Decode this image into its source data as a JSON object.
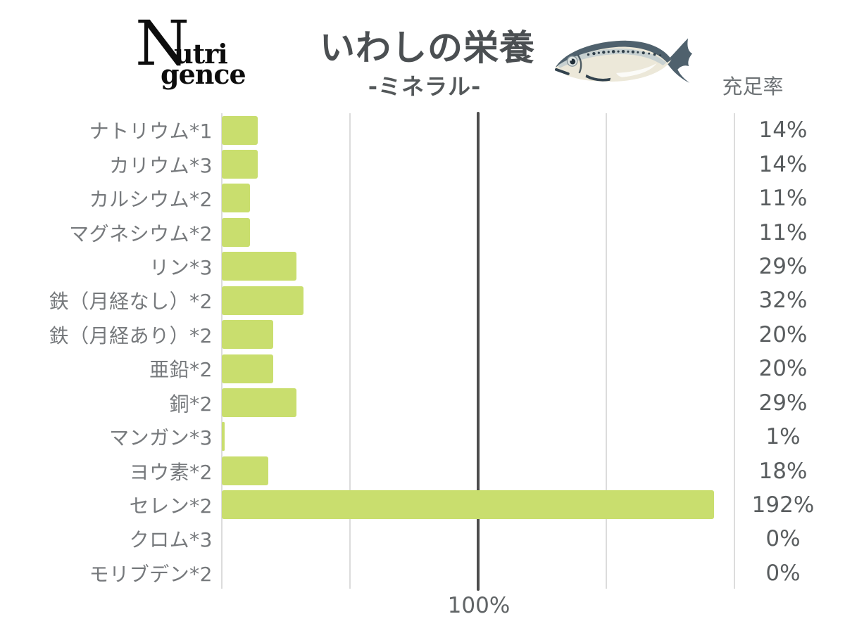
{
  "header": {
    "logo": {
      "big_letter": "N",
      "top_rest": "utri",
      "bottom": "gence"
    },
    "title": "いわしの栄養",
    "subtitle": "-ミネラル-",
    "value_column_header": "充足率",
    "fish_icon": "sardine-illustration"
  },
  "chart_data": {
    "type": "bar",
    "orientation": "horizontal",
    "title": "いわしの栄養",
    "subtitle": "-ミネラル-",
    "value_axis_unit": "%",
    "categories": [
      "ナトリウム*1",
      "カリウム*3",
      "カルシウム*2",
      "マグネシウム*2",
      "リン*3",
      "鉄（月経なし）*2",
      "鉄（月経あり）*2",
      "亜鉛*2",
      "銅*2",
      "マンガン*3",
      "ヨウ素*2",
      "セレン*2",
      "クロム*3",
      "モリブデン*2"
    ],
    "values": [
      14,
      14,
      11,
      11,
      29,
      32,
      20,
      20,
      29,
      1,
      18,
      192,
      0,
      0
    ],
    "value_labels": [
      "14%",
      "14%",
      "11%",
      "11%",
      "29%",
      "32%",
      "20%",
      "20%",
      "29%",
      "1%",
      "18%",
      "192%",
      "0%",
      "0%"
    ],
    "xlim": [
      0,
      200
    ],
    "gridlines_percent": [
      0,
      50,
      150,
      200
    ],
    "reference_line_percent": 100,
    "reference_tick_label": "100%",
    "grid": true,
    "legend_position": "none",
    "colors": {
      "bar": "#c9de6e",
      "gridline": "#dcdcdc",
      "reference_line": "#4d4d4d",
      "label_text": "#76797c",
      "value_text": "#595d5f",
      "title_text": "#4b4f52"
    }
  }
}
